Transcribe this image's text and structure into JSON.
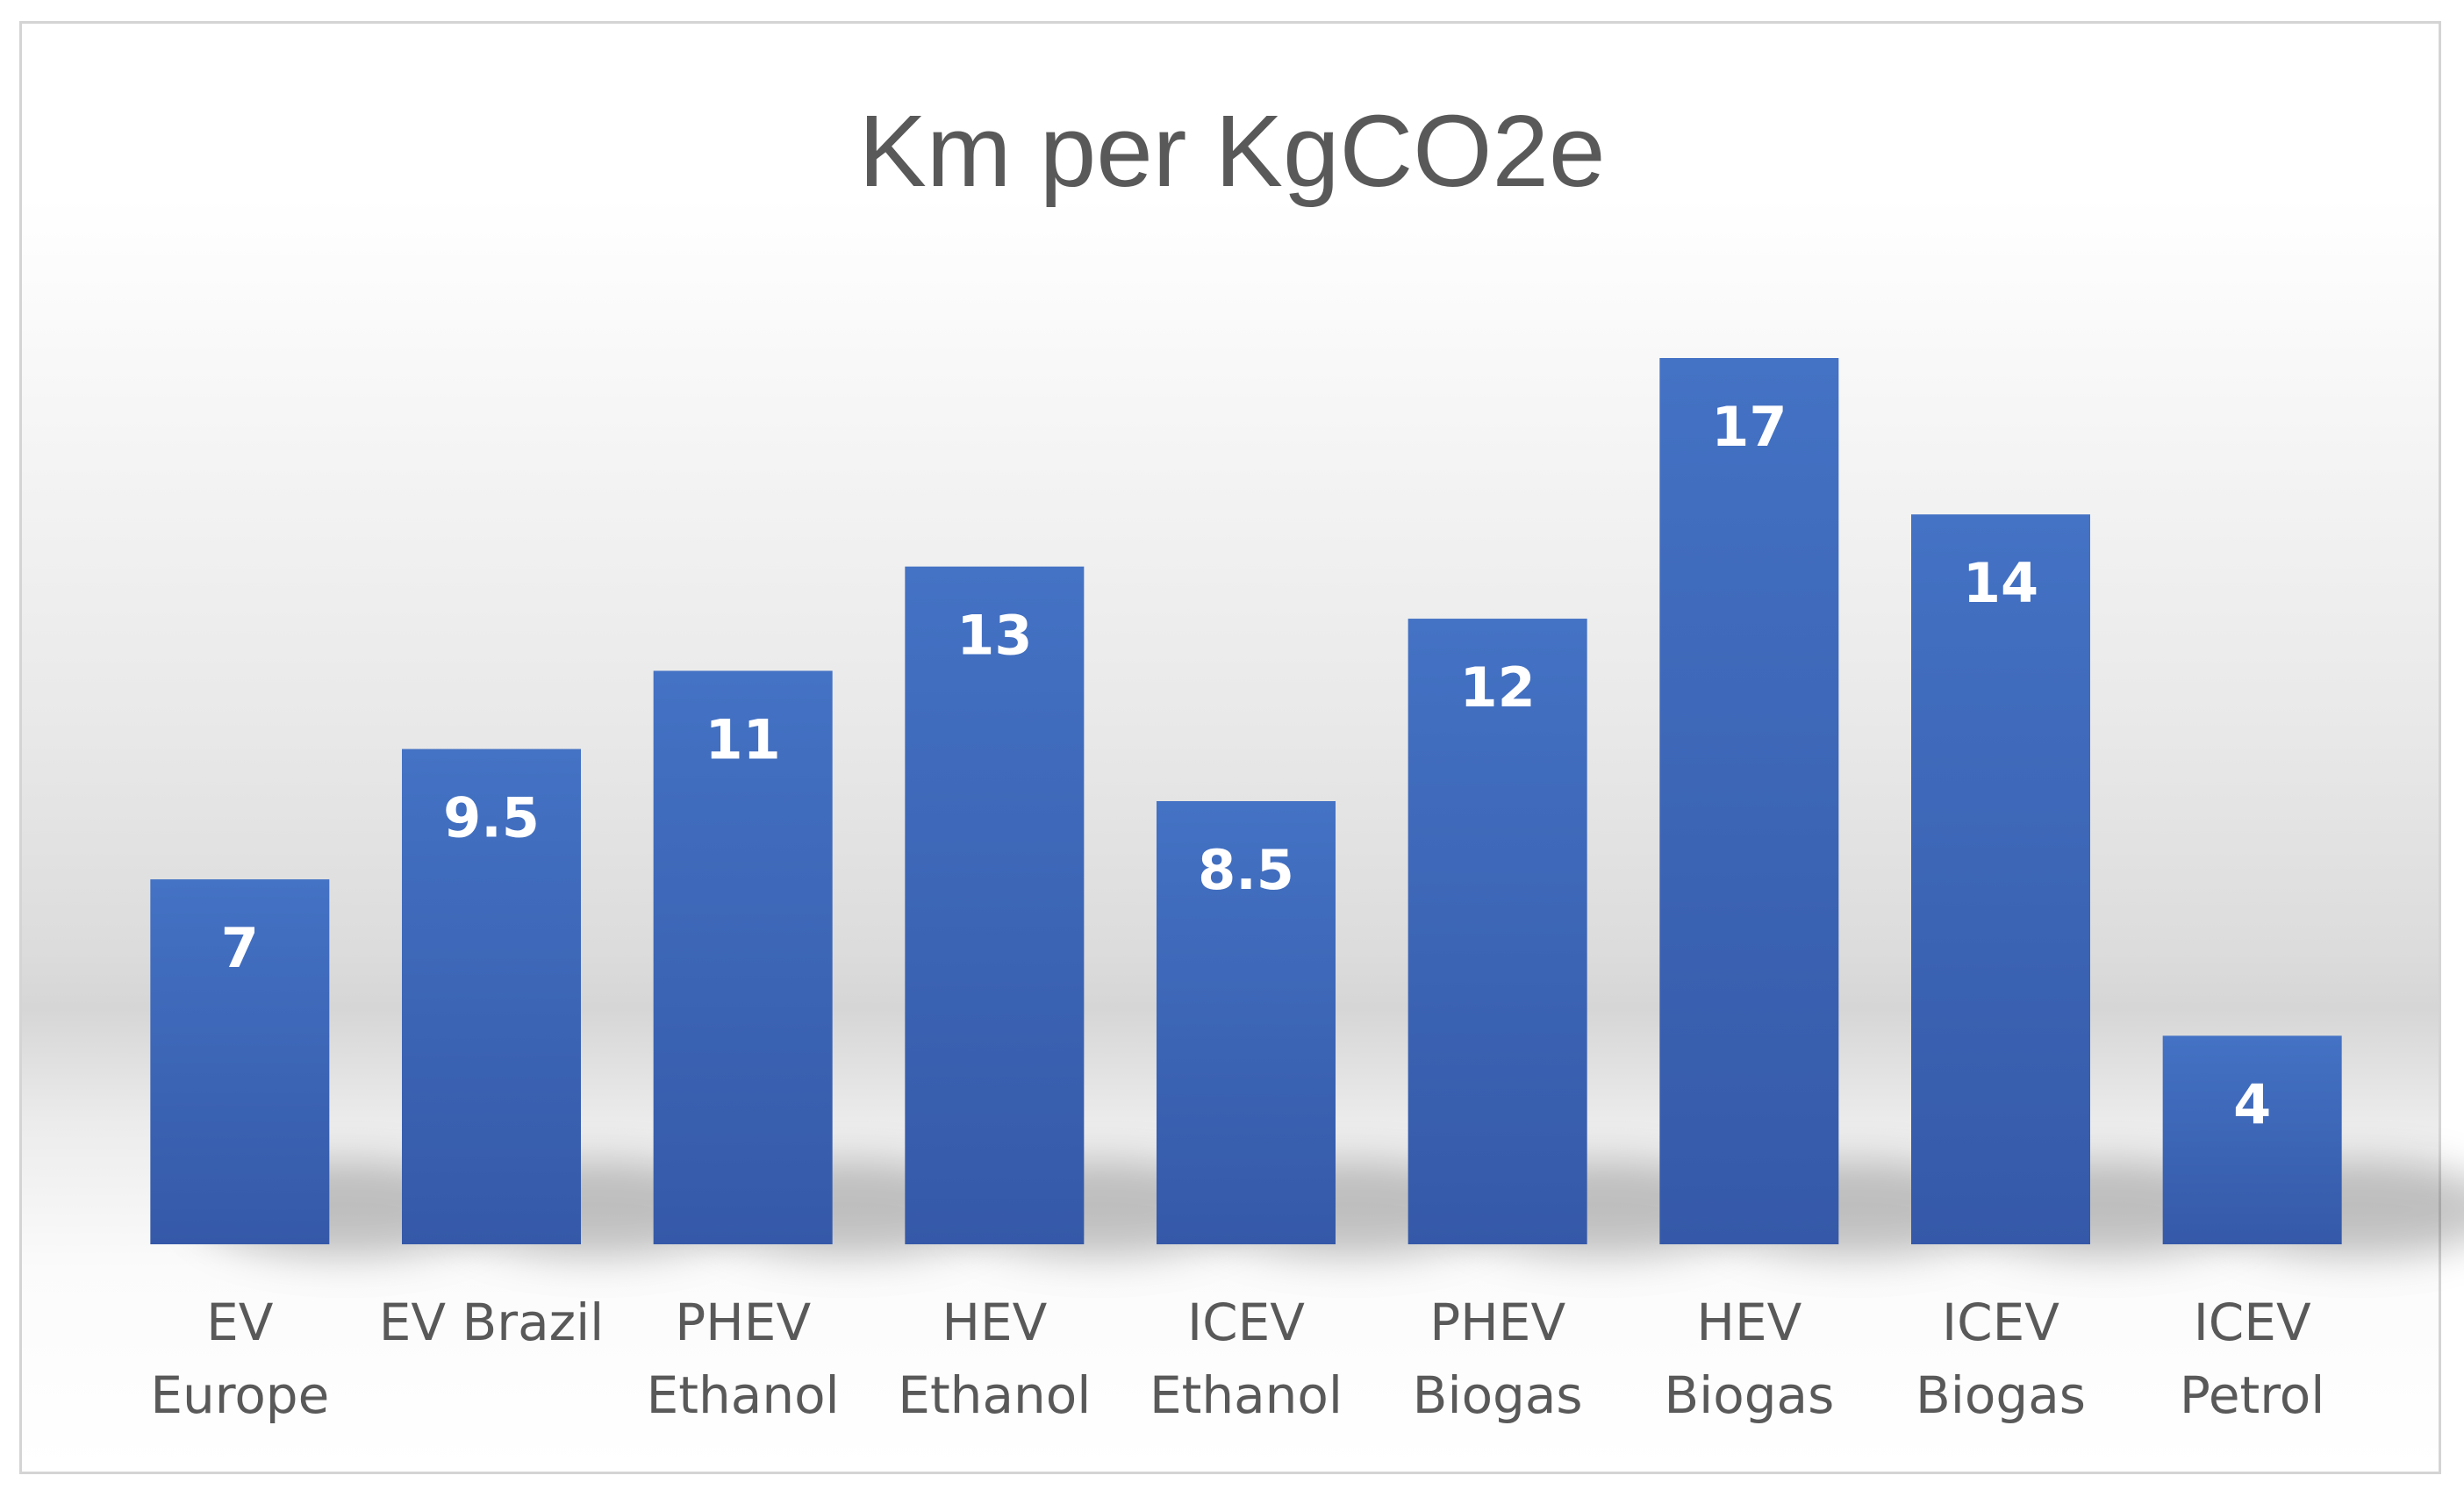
{
  "chart_data": {
    "type": "bar",
    "title": "Km per KgCO2e",
    "xlabel": "",
    "ylabel": "",
    "categories": [
      [
        "EV",
        "Europe"
      ],
      [
        "EV Brazil"
      ],
      [
        "PHEV",
        "Ethanol"
      ],
      [
        "HEV",
        "Ethanol"
      ],
      [
        "ICEV",
        "Ethanol"
      ],
      [
        "PHEV",
        "Biogas"
      ],
      [
        "HEV",
        "Biogas"
      ],
      [
        "ICEV",
        "Biogas"
      ],
      [
        "ICEV",
        "Petrol"
      ]
    ],
    "values": [
      7,
      9.5,
      11,
      13,
      8.5,
      12,
      17,
      14,
      4
    ],
    "ylim": [
      0,
      17
    ],
    "grid": false,
    "legend": "none",
    "data_labels": true,
    "bar_color": "#4472c4",
    "bar_color_dark": "#3559a8"
  }
}
